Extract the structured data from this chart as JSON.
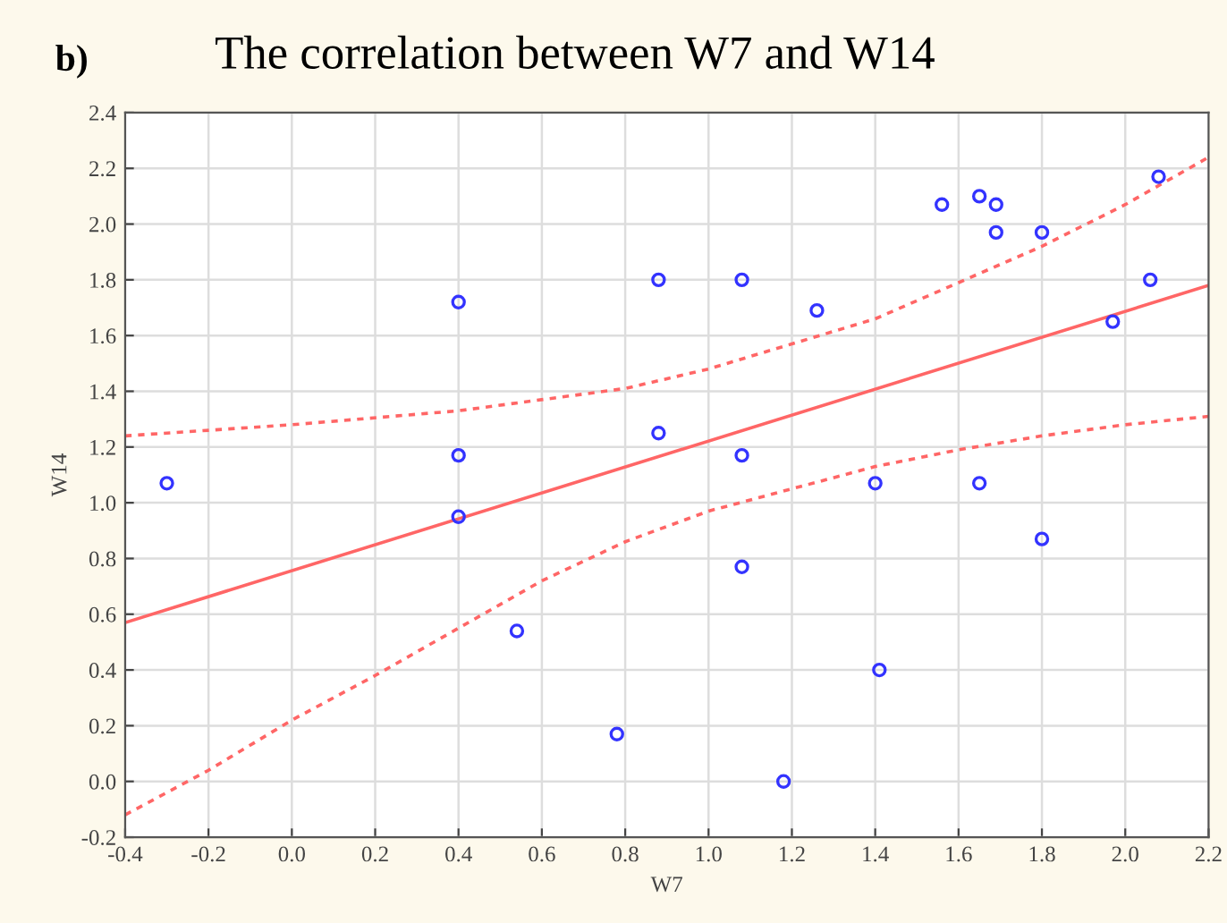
{
  "chart_data": {
    "type": "scatter",
    "title": "The correlation between W7 and W14",
    "xlabel": "W7",
    "ylabel": "W14",
    "annotations": [
      "b)"
    ],
    "series": [
      {
        "color": "#3333ff",
        "marker": "circle",
        "x": [
          -0.3,
          0.4,
          0.4,
          0.4,
          0.54,
          0.78,
          0.88,
          0.88,
          1.08,
          1.08,
          1.08,
          1.18,
          1.26,
          1.4,
          1.41,
          1.56,
          1.65,
          1.65,
          1.69,
          1.69,
          1.8,
          1.8,
          1.97,
          2.06,
          2.08
        ],
        "values": [
          1.07,
          1.72,
          1.17,
          0.95,
          0.54,
          0.17,
          1.8,
          1.25,
          1.8,
          1.17,
          0.77,
          0.0,
          1.69,
          1.07,
          0.4,
          2.07,
          2.1,
          1.07,
          2.07,
          1.97,
          1.97,
          0.87,
          1.65,
          1.8,
          2.17
        ]
      },
      {
        "type": "line",
        "color": "#ff6666",
        "line_style": "solid",
        "marker": "none",
        "x": [
          -0.4,
          2.2
        ],
        "values": [
          0.57,
          1.78
        ]
      },
      {
        "type": "line",
        "color": "#ff6666",
        "line_style": "dotted",
        "marker": "none",
        "x": [
          -0.4,
          0.0,
          0.4,
          0.8,
          1.0,
          1.2,
          1.4,
          1.6,
          1.8,
          2.0,
          2.2
        ],
        "values": [
          1.24,
          1.28,
          1.33,
          1.41,
          1.48,
          1.57,
          1.66,
          1.79,
          1.92,
          2.07,
          2.24
        ]
      },
      {
        "type": "line",
        "color": "#ff6666",
        "line_style": "dotted",
        "marker": "none",
        "x": [
          -0.4,
          -0.2,
          0.0,
          0.2,
          0.4,
          0.6,
          0.8,
          1.0,
          1.2,
          1.4,
          1.6,
          1.8,
          2.0,
          2.2
        ],
        "values": [
          -0.12,
          0.04,
          0.22,
          0.38,
          0.55,
          0.72,
          0.86,
          0.97,
          1.05,
          1.13,
          1.19,
          1.24,
          1.28,
          1.31
        ]
      }
    ],
    "xlim": [
      -0.4,
      2.2
    ],
    "xticks": [
      {
        "value": -0.4,
        "label": "-0.4"
      },
      {
        "value": -0.2,
        "label": "-0.2"
      },
      {
        "value": 0.0,
        "label": "0.0"
      },
      {
        "value": 0.2,
        "label": "0.2"
      },
      {
        "value": 0.4,
        "label": "0.4"
      },
      {
        "value": 0.6,
        "label": "0.6"
      },
      {
        "value": 0.8,
        "label": "0.8"
      },
      {
        "value": 1.0,
        "label": "1.0"
      },
      {
        "value": 1.2,
        "label": "1.2"
      },
      {
        "value": 1.4,
        "label": "1.4"
      },
      {
        "value": 1.6,
        "label": "1.6"
      },
      {
        "value": 1.8,
        "label": "1.8"
      },
      {
        "value": 2.0,
        "label": "2.0"
      },
      {
        "value": 2.2,
        "label": "2.2"
      }
    ],
    "ylim": [
      -0.2,
      2.4
    ],
    "yticks": [
      {
        "value": -0.2,
        "label": "-0.2"
      },
      {
        "value": 0.0,
        "label": "0.0"
      },
      {
        "value": 0.2,
        "label": "0.2"
      },
      {
        "value": 0.4,
        "label": "0.4"
      },
      {
        "value": 0.6,
        "label": "0.6"
      },
      {
        "value": 0.8,
        "label": "0.8"
      },
      {
        "value": 1.0,
        "label": "1.0"
      },
      {
        "value": 1.2,
        "label": "1.2"
      },
      {
        "value": 1.4,
        "label": "1.4"
      },
      {
        "value": 1.6,
        "label": "1.6"
      },
      {
        "value": 1.8,
        "label": "1.8"
      },
      {
        "value": 2.0,
        "label": "2.0"
      },
      {
        "value": 2.2,
        "label": "2.2"
      },
      {
        "value": 2.4,
        "label": "2.4"
      }
    ],
    "grid": true,
    "legend": false
  }
}
